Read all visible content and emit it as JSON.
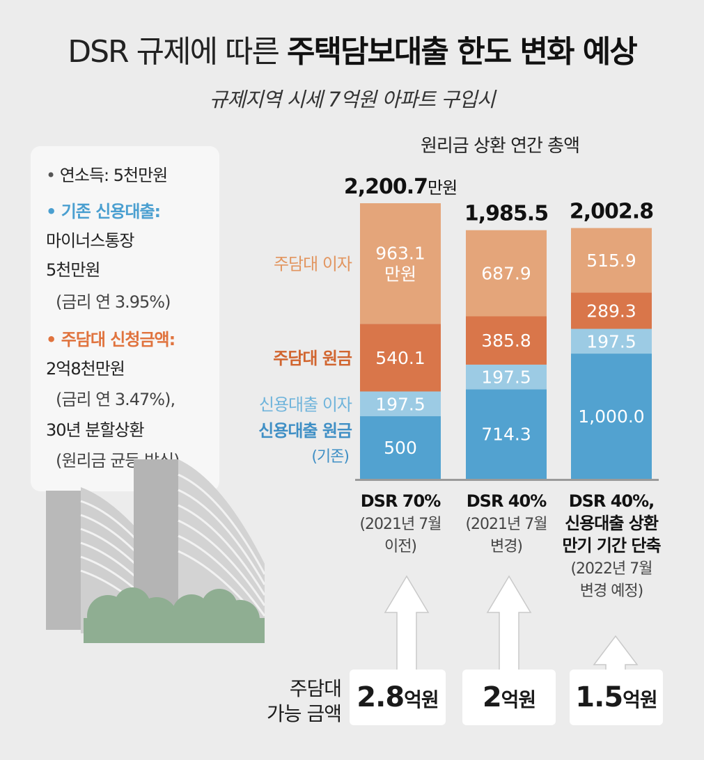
{
  "title": {
    "prefix": "DSR 규제에 따른",
    "emphasis": "주택담보대출 한도 변화 예상"
  },
  "subtitle": "규제지역 시세 7억원 아파트 구입시",
  "info": {
    "income": "연소득: 5천만원",
    "existing_loan_label": "기존 신용대출:",
    "existing_loan_type": "마이너스통장",
    "existing_loan_amount": "5천만원",
    "existing_loan_rate": "(금리 연 3.95%)",
    "mortgage_label": "주담대 신청금액:",
    "mortgage_amount": "2억8천만원",
    "mortgage_rate": "(금리 연 3.47%),",
    "mortgage_term": "30년 분할상환",
    "mortgage_method": "(원리금 균등 방식)"
  },
  "colors": {
    "mortgage_interest": "#e4a57a",
    "mortgage_principal": "#d9764a",
    "credit_interest": "#9ccbe4",
    "credit_principal": "#52a2d0",
    "label_orange_light": "#e2955f",
    "label_orange_dark": "#d1652f",
    "label_blue_light": "#6fb4db",
    "label_blue_dark": "#3f8fc5"
  },
  "chart_data": {
    "type": "bar",
    "stacked": true,
    "title": "원리금 상환 연간 총액",
    "unit": "만원",
    "ylim": [
      0,
      2200.7
    ],
    "categories": [
      "DSR 70%",
      "DSR 40%",
      "DSR 40%, 신용대출 상환 만기 기간 단축"
    ],
    "category_notes": [
      "(2021년 7월 이전)",
      "(2021년 7월 변경)",
      "(2022년 7월 변경 예정)"
    ],
    "category_lines": [
      [
        "DSR 70%",
        "(2021년 7월",
        "이전)"
      ],
      [
        "DSR 40%",
        "(2021년 7월",
        "변경)"
      ],
      [
        "DSR 40%,",
        "신용대출 상환",
        "만기 기간 단축",
        "(2022년 7월",
        "변경 예정)"
      ]
    ],
    "totals": [
      2200.7,
      1985.5,
      2002.8
    ],
    "total_labels": [
      "2,200.7",
      "1,985.5",
      "2,002.8"
    ],
    "first_total_unit": "만원",
    "series": [
      {
        "name": "신용대출 원금",
        "sub": "(기존)",
        "values": [
          500,
          714.3,
          1000.0
        ],
        "labels": [
          "500",
          "714.3",
          "1,000.0"
        ]
      },
      {
        "name": "신용대출 이자",
        "values": [
          197.5,
          197.5,
          197.5
        ],
        "labels": [
          "197.5",
          "197.5",
          "197.5"
        ]
      },
      {
        "name": "주담대 원금",
        "values": [
          540.1,
          385.8,
          289.3
        ],
        "labels": [
          "540.1",
          "385.8",
          "289.3"
        ]
      },
      {
        "name": "주담대 이자",
        "values": [
          963.1,
          687.9,
          515.9
        ],
        "labels": [
          "963.1",
          "687.9",
          "515.9"
        ],
        "first_label_unit": "만원"
      }
    ],
    "loan_limit_label": [
      "주담대",
      "가능 금액"
    ],
    "loan_limits": [
      {
        "value": 2.8,
        "num": "2.8",
        "unit": "억원"
      },
      {
        "value": 2,
        "num": "2",
        "unit": "억원"
      },
      {
        "value": 1.5,
        "num": "1.5",
        "unit": "억원"
      }
    ]
  }
}
